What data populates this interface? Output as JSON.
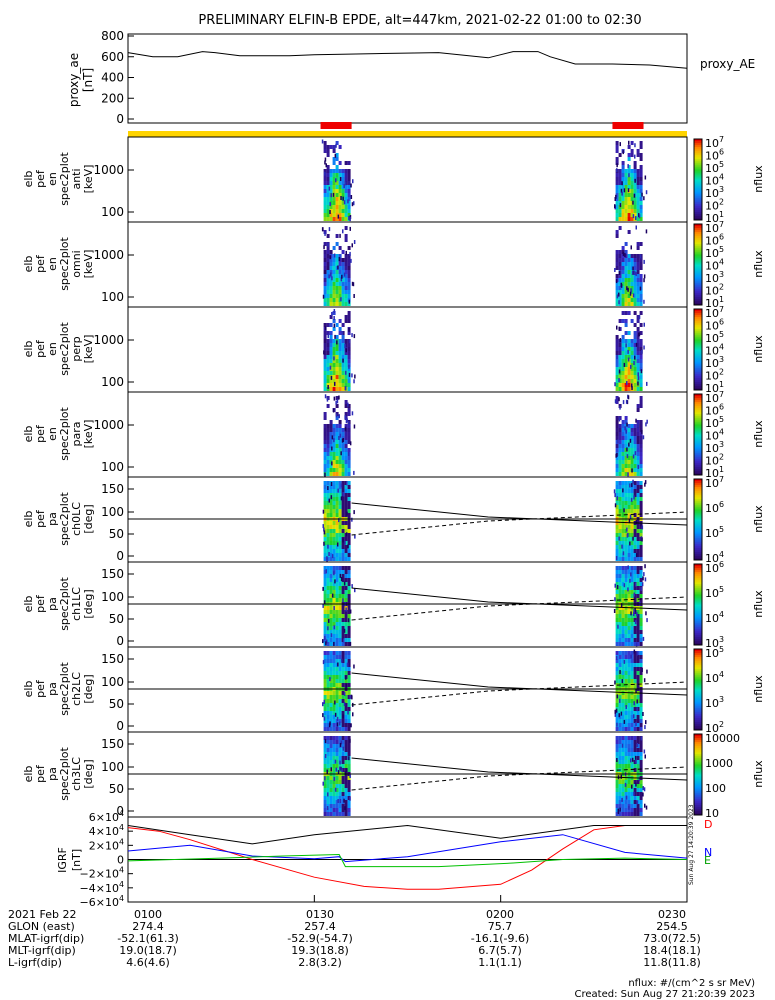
{
  "title": "PRELIMINARY ELFIN-B EPDE, alt=447km, 2021-02-22 01:00 to 02:30",
  "chart_data": [
    {
      "type": "line",
      "panel": "proxy_ae",
      "ylabel": [
        "proxy_ae",
        "[nT]"
      ],
      "series_label": "proxy_AE",
      "ylim": [
        0,
        800
      ],
      "yticks": [
        "800",
        "600",
        "400",
        "200",
        "0"
      ],
      "x_minutes": [
        0,
        4,
        8,
        12,
        14,
        18,
        22,
        26,
        30,
        40,
        50,
        58,
        62,
        66,
        68,
        72,
        78,
        84,
        90
      ],
      "values": [
        640,
        600,
        600,
        650,
        640,
        610,
        610,
        610,
        620,
        630,
        640,
        590,
        650,
        650,
        600,
        530,
        530,
        520,
        490
      ]
    },
    {
      "type": "heatmap",
      "panel": "spec2plot anti",
      "ylabel": [
        "elb",
        "pef",
        "en",
        "spec2plot",
        "anti",
        "[keV]"
      ],
      "yticks": [
        "1000",
        "100"
      ],
      "cbar_ticks": [
        "10^7",
        "10^6",
        "10^5",
        "10^4",
        "10^3",
        "10^2",
        "10^1"
      ],
      "cbar_label": "nflux",
      "scale": "log"
    },
    {
      "type": "heatmap",
      "panel": "spec2plot omni",
      "ylabel": [
        "elb",
        "pef",
        "en",
        "spec2plot",
        "omni",
        "[keV]"
      ],
      "yticks": [
        "1000",
        "100"
      ],
      "cbar_ticks": [
        "10^7",
        "10^6",
        "10^5",
        "10^4",
        "10^3",
        "10^2",
        "10^1"
      ],
      "cbar_label": "nflux",
      "scale": "log"
    },
    {
      "type": "heatmap",
      "panel": "spec2plot perp",
      "ylabel": [
        "elb",
        "pef",
        "en",
        "spec2plot",
        "perp",
        "[keV]"
      ],
      "yticks": [
        "1000",
        "100"
      ],
      "cbar_ticks": [
        "10^7",
        "10^6",
        "10^5",
        "10^4",
        "10^3",
        "10^2",
        "10^1"
      ],
      "cbar_label": "nflux",
      "scale": "log"
    },
    {
      "type": "heatmap",
      "panel": "spec2plot para",
      "ylabel": [
        "elb",
        "pef",
        "en",
        "spec2plot",
        "para",
        "[keV]"
      ],
      "yticks": [
        "1000",
        "100"
      ],
      "cbar_ticks": [
        "10^7",
        "10^6",
        "10^5",
        "10^4",
        "10^3",
        "10^2",
        "10^1"
      ],
      "cbar_label": "nflux",
      "scale": "log"
    },
    {
      "type": "heatmap",
      "panel": "spec2plot ch0LC",
      "ylabel": [
        "elb",
        "pef",
        "pa",
        "spec2plot",
        "ch0LC",
        "[deg]"
      ],
      "yticks": [
        "150",
        "100",
        "50",
        "0"
      ],
      "cbar_ticks": [
        "10^7",
        "10^6",
        "10^5",
        "10^4"
      ],
      "cbar_label": "nflux"
    },
    {
      "type": "heatmap",
      "panel": "spec2plot ch1LC",
      "ylabel": [
        "elb",
        "pef",
        "pa",
        "spec2plot",
        "ch1LC",
        "[deg]"
      ],
      "yticks": [
        "150",
        "100",
        "50",
        "0"
      ],
      "cbar_ticks": [
        "10^6",
        "10^5",
        "10^4",
        "10^3"
      ],
      "cbar_label": "nflux"
    },
    {
      "type": "heatmap",
      "panel": "spec2plot ch2LC",
      "ylabel": [
        "elb",
        "pef",
        "pa",
        "spec2plot",
        "ch2LC",
        "[deg]"
      ],
      "yticks": [
        "150",
        "100",
        "50",
        "0"
      ],
      "cbar_ticks": [
        "10^5",
        "10^4",
        "10^3",
        "10^2"
      ],
      "cbar_label": "nflux"
    },
    {
      "type": "heatmap",
      "panel": "spec2plot ch3LC",
      "ylabel": [
        "elb",
        "pef",
        "pa",
        "spec2plot",
        "ch3LC",
        "[deg]"
      ],
      "yticks": [
        "150",
        "100",
        "50",
        "0"
      ],
      "cbar_ticks": [
        "10000",
        "1000",
        "100",
        "10"
      ],
      "cbar_label": "nflux"
    },
    {
      "type": "line",
      "panel": "IGRF",
      "ylabel": [
        "IGRF",
        "[nT]"
      ],
      "ylim": [
        -60000,
        60000
      ],
      "yticks": [
        "6×10^4",
        "4×10^4",
        "2×10^4",
        "0",
        "−2×10^4",
        "−4×10^4",
        "−6×10^4"
      ],
      "series": [
        {
          "name": "D",
          "color": "#ff0000",
          "x_minutes": [
            0,
            5,
            10,
            20,
            30,
            38,
            45,
            50,
            60,
            65,
            70,
            75,
            80,
            90
          ],
          "values": [
            45000,
            40000,
            28000,
            0,
            -25000,
            -38000,
            -42000,
            -42000,
            -35000,
            -15000,
            15000,
            42000,
            48000,
            48000
          ]
        },
        {
          "name": "N",
          "color": "#0000ff",
          "x_minutes": [
            0,
            10,
            20,
            30,
            34,
            35,
            45,
            60,
            70,
            80,
            90
          ],
          "values": [
            12000,
            20000,
            5000,
            1000,
            4000,
            -3000,
            4000,
            25000,
            35000,
            10000,
            2000
          ]
        },
        {
          "name": "E",
          "color": "#00c000",
          "x_minutes": [
            0,
            15,
            25,
            34,
            35,
            50,
            62,
            70,
            80,
            90
          ],
          "values": [
            -2000,
            2000,
            5000,
            7000,
            -10000,
            -10000,
            -5000,
            0,
            2000,
            0
          ]
        },
        {
          "name": "",
          "color": "#000000",
          "x_minutes": [
            0,
            10,
            20,
            30,
            45,
            60,
            75,
            90
          ],
          "values": [
            48000,
            35000,
            22000,
            35000,
            48000,
            30000,
            48000,
            48000
          ]
        }
      ]
    }
  ],
  "legend": {
    "d": "D",
    "n": "N",
    "e": "E"
  },
  "yellow_bar": {
    "x_minutes": [
      0,
      90
    ]
  },
  "red_bars": [
    {
      "x_minutes": [
        31,
        36
      ]
    },
    {
      "x_minutes": [
        78,
        83
      ]
    }
  ],
  "time_ticks": [
    "0100",
    "0130",
    "0200",
    "0230"
  ],
  "footer": {
    "rows": [
      {
        "label": "2021 Feb 22",
        "values": [
          "0100",
          "0130",
          "0200",
          "0230"
        ]
      },
      {
        "label": "GLON (east)",
        "values": [
          "274.4",
          "257.4",
          "75.7",
          "254.5"
        ]
      },
      {
        "label": "MLAT-igrf(dip)",
        "values": [
          "-52.1(61.3)",
          "-52.9(-54.7)",
          "-16.1(-9.6)",
          "73.0(72.5)"
        ]
      },
      {
        "label": "MLT-igrf(dip)",
        "values": [
          "19.0(18.7)",
          "19.3(18.8)",
          "6.7(5.7)",
          "18.4(18.1)"
        ]
      },
      {
        "label": "L-igrf(dip)",
        "values": [
          "4.6(4.6)",
          "2.8(3.2)",
          "1.1(1.1)",
          "11.8(11.8)"
        ]
      }
    ],
    "units_note": "nflux: #/(cm^2 s sr MeV)",
    "created": "Created: Sun Aug 27 21:20:39 2023",
    "side_stamp": "Sun Aug 27 14:20:39 2023"
  }
}
